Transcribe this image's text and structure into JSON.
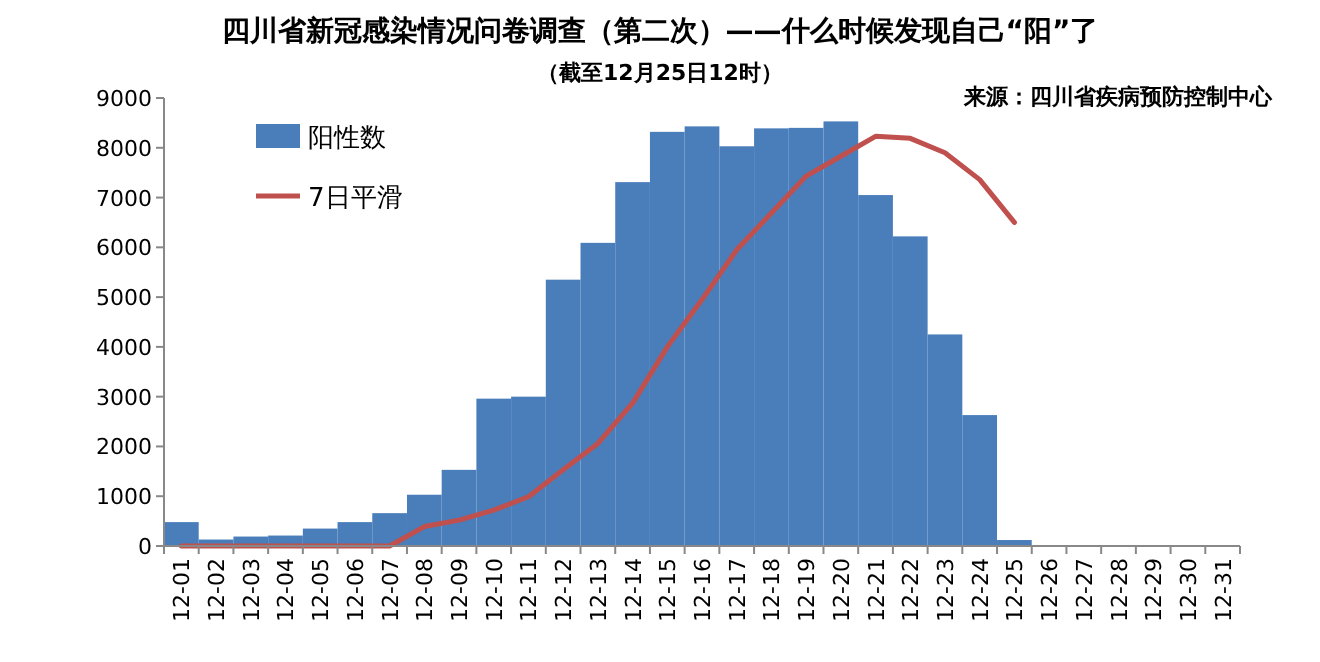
{
  "chart_data": {
    "type": "bar",
    "title": "四川省新冠感染情况问卷调查（第二次）——什么时候发现自己“阳”了",
    "subtitle": "（截至12月25日12时）",
    "annotations": [
      "来源：四川省疾病预防控制中心"
    ],
    "categories": [
      "12-01",
      "12-02",
      "12-03",
      "12-04",
      "12-05",
      "12-06",
      "12-07",
      "12-08",
      "12-09",
      "12-10",
      "12-11",
      "12-12",
      "12-13",
      "12-14",
      "12-15",
      "12-16",
      "12-17",
      "12-18",
      "12-19",
      "12-20",
      "12-21",
      "12-22",
      "12-23",
      "12-24",
      "12-25",
      "12-26",
      "12-27",
      "12-28",
      "12-29",
      "12-30",
      "12-31"
    ],
    "series": [
      {
        "name": "阳性数",
        "color": "#4a7ebb",
        "values": [
          480,
          130,
          190,
          210,
          350,
          480,
          660,
          1030,
          1530,
          2960,
          3000,
          5350,
          6090,
          7310,
          8320,
          8430,
          8030,
          8390,
          8400,
          8530,
          7050,
          6220,
          4250,
          2630,
          120,
          null,
          null,
          null,
          null,
          null,
          null
        ]
      },
      {
        "name": "7日平滑",
        "type": "line",
        "color": "#c0504d",
        "values": [
          0,
          0,
          0,
          0,
          0,
          0,
          0,
          390,
          520,
          720,
          990,
          1530,
          2060,
          2870,
          4000,
          4950,
          5950,
          6690,
          7430,
          7830,
          8230,
          8190,
          7900,
          7360,
          6500,
          null,
          null,
          null,
          null,
          null,
          null
        ]
      }
    ],
    "ylim": [
      0,
      9000
    ],
    "yticks": [
      0,
      1000,
      2000,
      3000,
      4000,
      5000,
      6000,
      7000,
      8000,
      9000
    ],
    "legend": "top left",
    "grid": false
  }
}
